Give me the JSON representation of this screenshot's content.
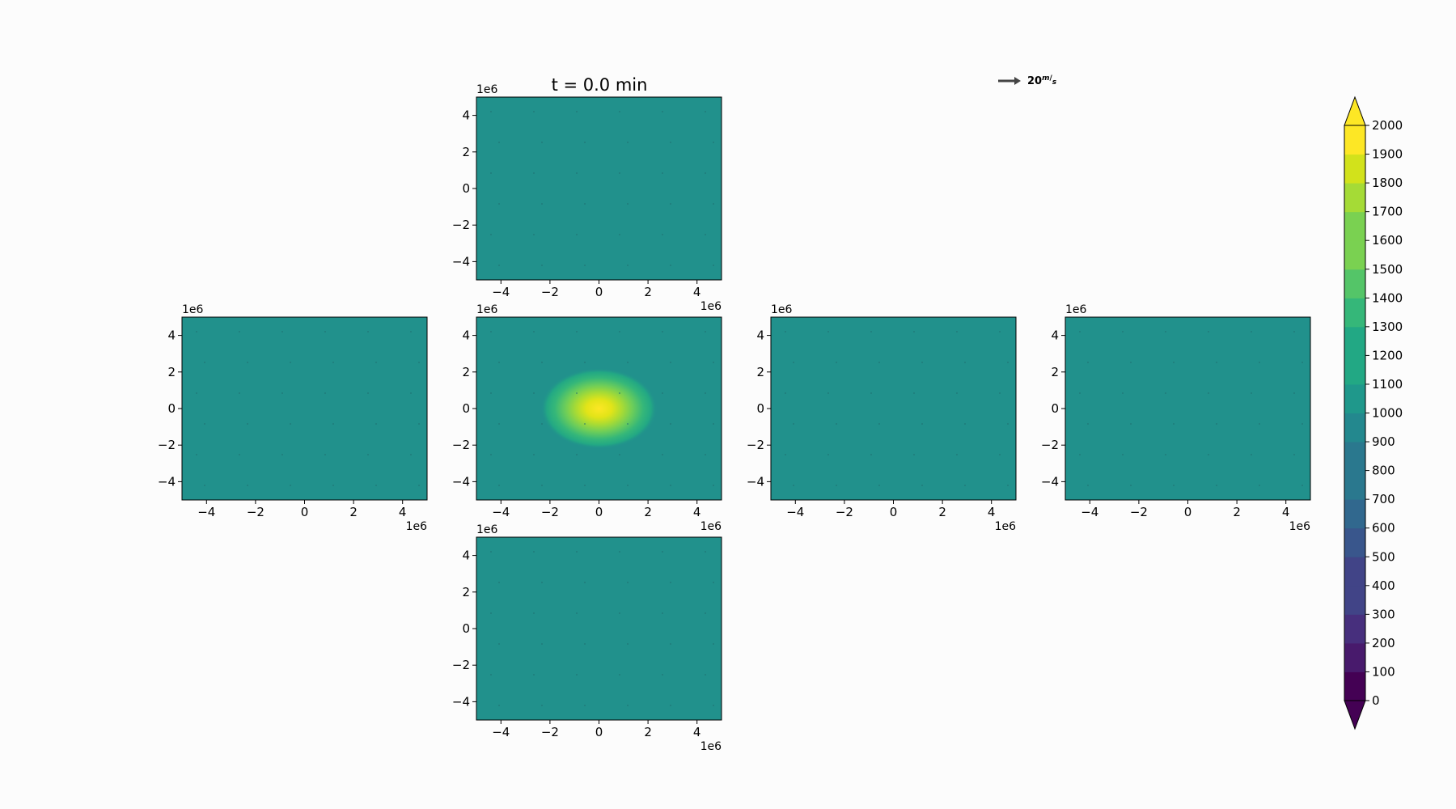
{
  "chart_data": {
    "type": "heatmap",
    "title": "t = 0.0 min",
    "quiver_key": {
      "label": "20",
      "unit_numerator": "m",
      "unit_denominator": "s",
      "value": 20
    },
    "colors": {
      "background": "#fcfcfc",
      "field_base": "#21918c",
      "peak": "#fde725",
      "arrow": "#444444"
    },
    "panels": [
      {
        "id": "top",
        "xlim": [
          -5000000,
          5000000
        ],
        "ylim": [
          -5000000,
          5000000
        ],
        "background_value": 1000
      },
      {
        "id": "left",
        "xlim": [
          -5000000,
          5000000
        ],
        "ylim": [
          -5000000,
          5000000
        ],
        "background_value": 1000
      },
      {
        "id": "center",
        "xlim": [
          -5000000,
          5000000
        ],
        "ylim": [
          -5000000,
          5000000
        ],
        "background_value": 1000,
        "peak": {
          "x": 0,
          "y": 0,
          "value": 2000
        }
      },
      {
        "id": "right",
        "xlim": [
          -5000000,
          5000000
        ],
        "ylim": [
          -5000000,
          5000000
        ],
        "background_value": 1000
      },
      {
        "id": "far-right",
        "xlim": [
          -5000000,
          5000000
        ],
        "ylim": [
          -5000000,
          5000000
        ],
        "background_value": 1000
      },
      {
        "id": "bottom",
        "xlim": [
          -5000000,
          5000000
        ],
        "ylim": [
          -5000000,
          5000000
        ],
        "background_value": 1000
      }
    ],
    "x_ticks": [
      "−4",
      "−2",
      "0",
      "2",
      "4"
    ],
    "x_tick_values": [
      -4,
      -2,
      0,
      2,
      4
    ],
    "y_ticks": [
      "4",
      "2",
      "0",
      "−2",
      "−4"
    ],
    "y_tick_values": [
      4,
      2,
      0,
      -2,
      -4
    ],
    "axis_offset_label": "1e6",
    "colorbar": {
      "min": 0,
      "max": 2000,
      "step": 100,
      "extend": "both",
      "ticks": [
        "0",
        "100",
        "200",
        "300",
        "400",
        "500",
        "600",
        "700",
        "800",
        "900",
        "1000",
        "1100",
        "1200",
        "1300",
        "1400",
        "1500",
        "1600",
        "1700",
        "1800",
        "1900",
        "2000"
      ]
    }
  }
}
